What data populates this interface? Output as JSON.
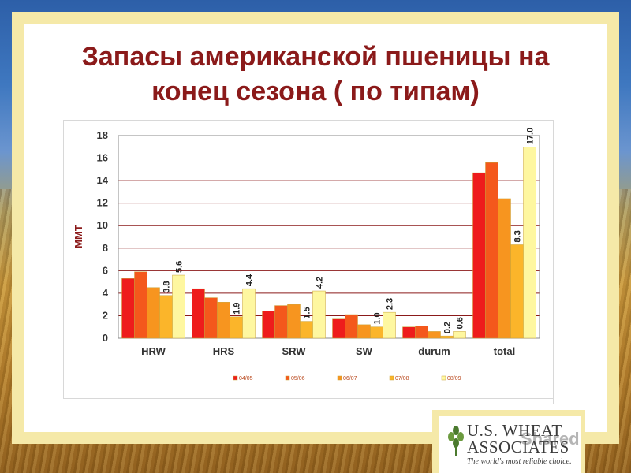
{
  "slide": {
    "title_line1": "Запасы американской пшеницы на",
    "title_line2": "конец сезона ( по типам)"
  },
  "logo": {
    "line1": "U.S. WHEAT",
    "line2": "ASSOCIATES",
    "tagline": "The world's most reliable choice.",
    "watermark": "Shared"
  },
  "colors": {
    "04/05": "#ee1c1c",
    "05/06": "#f4581c",
    "06/07": "#f7951f",
    "07/08": "#fbb52a",
    "08/09": "#fef7a0",
    "title": "#8b1a1a",
    "grid": "#8b1a1a"
  },
  "chart_data": {
    "type": "bar",
    "ylabel": "MMT",
    "xlabel": "",
    "ylim": [
      0,
      18
    ],
    "yticks": [
      0,
      2,
      4,
      6,
      8,
      10,
      12,
      14,
      16,
      18
    ],
    "grid": true,
    "legend_position": "bottom",
    "categories": [
      "HRW",
      "HRS",
      "SRW",
      "SW",
      "durum",
      "total"
    ],
    "series": [
      {
        "name": "04/05",
        "values": [
          5.3,
          4.4,
          2.4,
          1.7,
          1.0,
          14.7
        ]
      },
      {
        "name": "05/06",
        "values": [
          5.9,
          3.6,
          2.9,
          2.1,
          1.1,
          15.6
        ]
      },
      {
        "name": "06/07",
        "values": [
          4.5,
          3.2,
          3.0,
          1.2,
          0.6,
          12.4
        ]
      },
      {
        "name": "07/08",
        "values": [
          3.8,
          1.9,
          1.5,
          1.0,
          0.2,
          8.3
        ]
      },
      {
        "name": "08/09",
        "values": [
          5.6,
          4.4,
          4.2,
          2.3,
          0.6,
          17.0
        ]
      }
    ],
    "data_labels": {
      "07/08": [
        "3.8",
        "1.9",
        "1.5",
        "1.0",
        "0.2",
        "8.3"
      ],
      "08/09": [
        "5.6",
        "4.4",
        "4.2",
        "2.3",
        "0.6",
        "17.0"
      ]
    }
  }
}
